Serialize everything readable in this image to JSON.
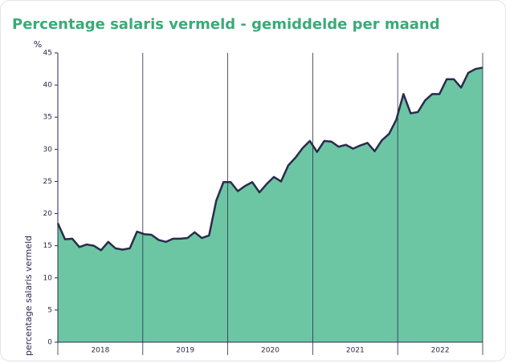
{
  "chart_data": {
    "type": "area",
    "title": "Percentage salaris vermeld - gemiddelde per maand",
    "y_unit": "%",
    "y_axis_label": "percentage salaris vermeld",
    "year_labels": [
      "2018",
      "2019",
      "2020",
      "2021",
      "2022"
    ],
    "categories": [
      null,
      null,
      null,
      null,
      null,
      null,
      null,
      null,
      null,
      null,
      null,
      null,
      null,
      null,
      null,
      null,
      null,
      null,
      null,
      null,
      null,
      null,
      null,
      null,
      null,
      null,
      null,
      null,
      null,
      null,
      null,
      null,
      null,
      null,
      null,
      null,
      null,
      null,
      null,
      null,
      null,
      null,
      null,
      null,
      null,
      null,
      null,
      null,
      null,
      null,
      null,
      null,
      null,
      null,
      null,
      null,
      null,
      null,
      null,
      null
    ],
    "series": [
      {
        "color": "#6cc6a4",
        "line_color": "#2b2a4c",
        "values": [
          18.5,
          16,
          16.1,
          14.8,
          15.2,
          15,
          14.3,
          15.6,
          14.6,
          14.4,
          14.6,
          17.2,
          16.8,
          16.7,
          15.9,
          15.6,
          16.1,
          16.1,
          16.2,
          17.1,
          16.2,
          16.6,
          22,
          24.9,
          24.9,
          23.5,
          24.3,
          24.9,
          23.3,
          24.6,
          25.7,
          25,
          27.5,
          28.7,
          30.2,
          31.3,
          29.6,
          31.3,
          31.2,
          30.4,
          30.7,
          30.1,
          30.6,
          31,
          29.7,
          31.4,
          32.4,
          34.6,
          38.6,
          35.6,
          35.8,
          37.6,
          38.6,
          38.6,
          40.9,
          40.9,
          39.6,
          41.9,
          42.5,
          42.7
        ]
      }
    ],
    "ylim": [
      0,
      45
    ],
    "yticks": [
      0,
      5,
      10,
      15,
      20,
      25,
      30,
      35,
      40,
      45
    ]
  }
}
